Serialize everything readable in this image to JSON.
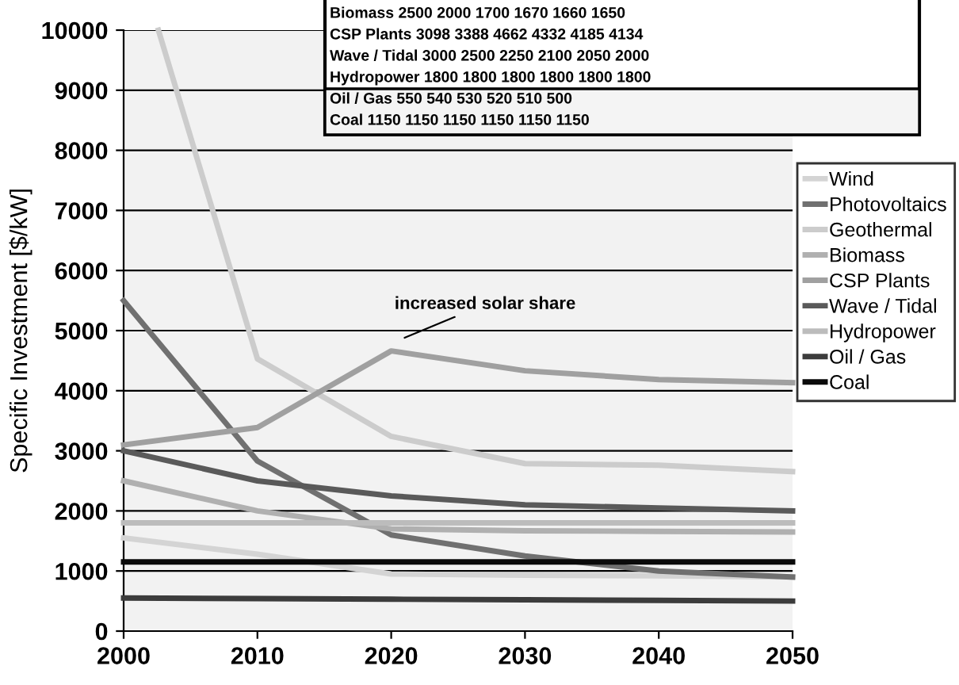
{
  "chart_data": {
    "type": "line",
    "ylabel": "Specific Investment [$/kW]",
    "x": [
      2000,
      2010,
      2020,
      2030,
      2040,
      2050
    ],
    "xlim": [
      2000,
      2050
    ],
    "xticks": [
      2000,
      2010,
      2020,
      2030,
      2040,
      2050
    ],
    "ylim": [
      0,
      10000
    ],
    "yticks": [
      0,
      1000,
      2000,
      3000,
      4000,
      5000,
      6000,
      7000,
      8000,
      9000,
      10000
    ],
    "grid": "y",
    "legend": "right",
    "marker": "none",
    "line_style": "solid",
    "annotations": [
      "increased solar share",
      "Biomass 2500 2000 1700 1670 1660 1650",
      "CSP Plants 3098 3388 4662 4332 4185 4134",
      "Wave / Tidal 3000 2500 2250 2100 2050 2000",
      "Hydropower 1800 1800 1800 1800 1800 1800",
      "Oil / Gas 550 540 530 520 510 500",
      "Coal 1150 1150 1150 1150 1150 1150"
    ],
    "series": [
      {
        "name": "Wind",
        "color": "#d4d4d4",
        "values": [
          1550,
          1280,
          950,
          930,
          920,
          900
        ]
      },
      {
        "name": "Photovoltaics",
        "color": "#707070",
        "values": [
          5500,
          2830,
          1600,
          1250,
          1000,
          900
        ]
      },
      {
        "name": "Geothermal",
        "color": "#cccccc",
        "x": [
          2002.6,
          2010,
          2020,
          2030,
          2040,
          2050
        ],
        "values": [
          10000,
          4530,
          3240,
          2787,
          2760,
          2654
        ]
      },
      {
        "name": "Biomass",
        "color": "#b0b0b0",
        "values": [
          2500,
          2000,
          1700,
          1670,
          1660,
          1650
        ]
      },
      {
        "name": "CSP Plants",
        "color": "#a0a0a0",
        "values": [
          3098,
          3388,
          4662,
          4332,
          4185,
          4134
        ]
      },
      {
        "name": "Wave / Tidal",
        "color": "#5a5a5a",
        "values": [
          3000,
          2500,
          2250,
          2100,
          2050,
          2000
        ]
      },
      {
        "name": "Hydropower",
        "color": "#bcbcbc",
        "values": [
          1800,
          1800,
          1800,
          1800,
          1800,
          1800
        ]
      },
      {
        "name": "Oil / Gas",
        "color": "#3c3c3c",
        "values": [
          550,
          540,
          530,
          520,
          510,
          500
        ]
      },
      {
        "name": "Coal",
        "color": "#0a0a0a",
        "values": [
          1150,
          1150,
          1150,
          1150,
          1150,
          1150
        ]
      }
    ]
  }
}
